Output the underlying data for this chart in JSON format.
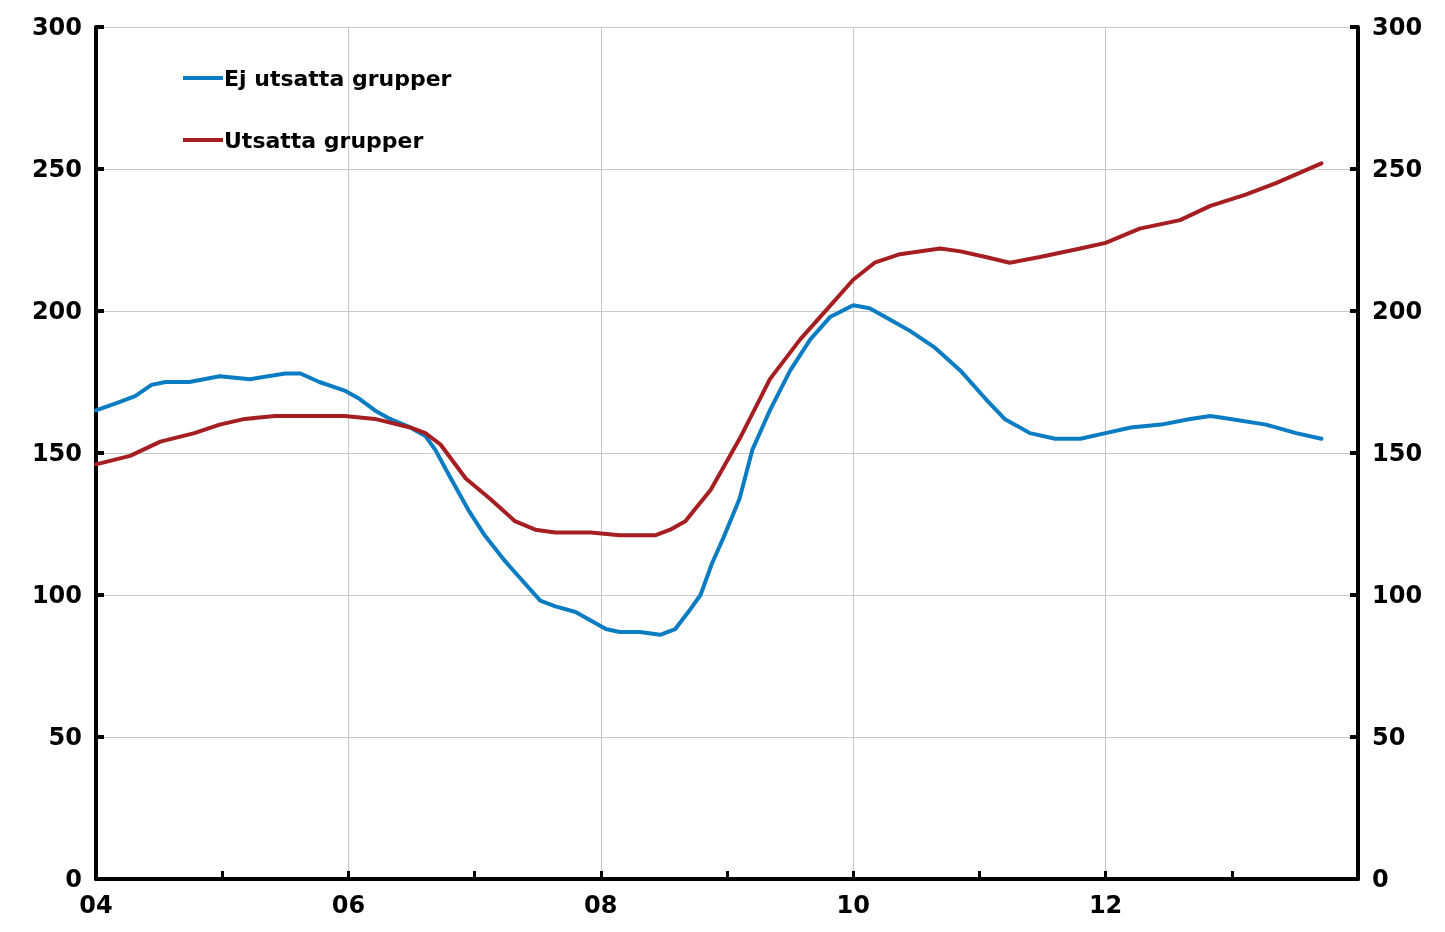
{
  "chart_data": {
    "type": "line",
    "xlim": [
      2004,
      2014
    ],
    "xticks": [
      {
        "value": 2004,
        "label": "04"
      },
      {
        "value": 2005,
        "label": null
      },
      {
        "value": 2006,
        "label": "06"
      },
      {
        "value": 2007,
        "label": null
      },
      {
        "value": 2008,
        "label": "08"
      },
      {
        "value": 2009,
        "label": null
      },
      {
        "value": 2010,
        "label": "10"
      },
      {
        "value": 2011,
        "label": null
      },
      {
        "value": 2012,
        "label": "12"
      },
      {
        "value": 2013,
        "label": null
      },
      {
        "value": 2014,
        "label": null
      }
    ],
    "ylim": [
      0,
      300
    ],
    "yticks": [
      0,
      50,
      100,
      150,
      200,
      250,
      300
    ],
    "y2lim": [
      0,
      300
    ],
    "y2ticks": [
      0,
      50,
      100,
      150,
      200,
      250,
      300
    ],
    "grid": true,
    "legend": "top left",
    "marker": "none",
    "line_style": "solid",
    "series": [
      {
        "name": "Ej utsatta grupper",
        "color": "#0a7cc1",
        "x": [
          2004.0,
          2004.19,
          2004.31,
          2004.44,
          2004.55,
          2004.74,
          2004.98,
          2005.22,
          2005.5,
          2005.62,
          2005.77,
          2005.97,
          2006.09,
          2006.21,
          2006.33,
          2006.49,
          2006.61,
          2006.69,
          2006.8,
          2006.95,
          2007.08,
          2007.24,
          2007.36,
          2007.52,
          2007.64,
          2007.8,
          2007.92,
          2008.04,
          2008.15,
          2008.31,
          2008.47,
          2008.59,
          2008.71,
          2008.79,
          2008.88,
          2008.98,
          2009.1,
          2009.2,
          2009.34,
          2009.5,
          2009.66,
          2009.82,
          2010.0,
          2010.13,
          2010.29,
          2010.45,
          2010.65,
          2010.85,
          2011.05,
          2011.2,
          2011.4,
          2011.6,
          2011.8,
          2012.0,
          2012.2,
          2012.44,
          2012.67,
          2012.83,
          2012.99,
          2013.27,
          2013.51,
          2013.71
        ],
        "values": [
          165,
          168,
          170,
          174,
          175,
          175,
          177,
          176,
          178,
          178,
          175,
          172,
          169,
          165,
          162,
          159,
          156,
          151,
          142,
          130,
          121,
          112,
          106,
          98,
          96,
          94,
          91,
          88,
          87,
          87,
          86,
          88,
          95,
          100,
          111,
          121,
          134,
          151,
          165,
          179,
          190,
          198,
          202,
          201,
          197,
          193,
          187,
          179,
          169,
          162,
          157,
          155,
          155,
          157,
          159,
          160,
          162,
          163,
          162,
          160,
          157,
          155
        ]
      },
      {
        "name": "Utsatta grupper",
        "color": "#a51e22",
        "x": [
          2004.0,
          2004.27,
          2004.51,
          2004.78,
          2004.98,
          2005.18,
          2005.42,
          2005.7,
          2005.97,
          2006.21,
          2006.49,
          2006.61,
          2006.73,
          2006.93,
          2007.12,
          2007.32,
          2007.48,
          2007.64,
          2007.92,
          2008.15,
          2008.43,
          2008.55,
          2008.67,
          2008.87,
          2009.1,
          2009.34,
          2009.58,
          2009.82,
          2010.0,
          2010.17,
          2010.37,
          2010.69,
          2010.85,
          2011.05,
          2011.24,
          2011.48,
          2011.8,
          2012.0,
          2012.27,
          2012.59,
          2012.83,
          2013.11,
          2013.35,
          2013.71
        ],
        "values": [
          146,
          149,
          154,
          157,
          160,
          162,
          163,
          163,
          163,
          162,
          159,
          157,
          153,
          141,
          134,
          126,
          123,
          122,
          122,
          121,
          121,
          123,
          126,
          137,
          155,
          176,
          190,
          202,
          211,
          217,
          220,
          222,
          221,
          219,
          217,
          219,
          222,
          224,
          229,
          232,
          237,
          241,
          245,
          252
        ]
      }
    ]
  }
}
